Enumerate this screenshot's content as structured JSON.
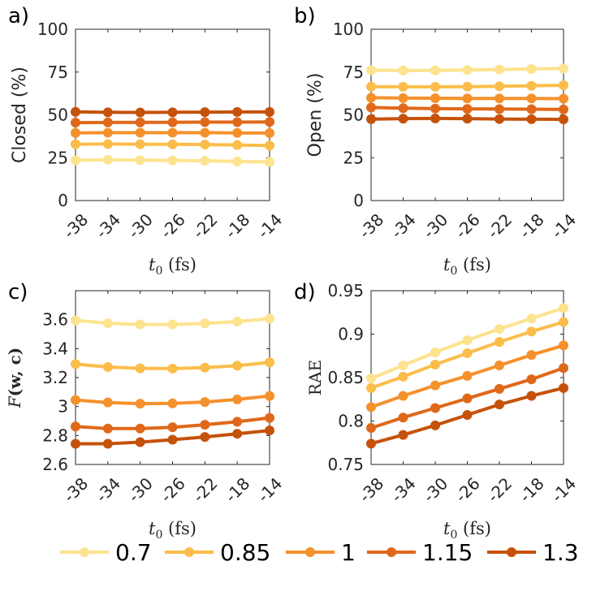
{
  "colors": [
    "#fde38e",
    "#fbbd4a",
    "#f5912c",
    "#e0681a",
    "#c5520a"
  ],
  "legend": [
    "0.7",
    "0.85",
    "1",
    "1.15",
    "1.3"
  ],
  "chart_data": [
    {
      "type": "line",
      "panel_label": "a)",
      "ylabel": "Closed (%)",
      "xlabel_main": "t",
      "xlabel_sub": "0",
      "xlabel_unit": "(fs)",
      "categories": [
        "-38",
        "-34",
        "-30",
        "-26",
        "-22",
        "-18",
        "-14"
      ],
      "ylim": [
        0,
        100
      ],
      "yticks": [
        "0",
        "25",
        "50",
        "75",
        "100"
      ],
      "ytick_values": [
        0,
        25,
        50,
        75,
        100
      ],
      "series": [
        {
          "name": "0.7",
          "values": [
            23.5,
            23.8,
            23.6,
            23.4,
            23.2,
            22.8,
            22.5
          ]
        },
        {
          "name": "0.85",
          "values": [
            32.9,
            33.0,
            32.9,
            32.8,
            32.7,
            32.4,
            32.1
          ]
        },
        {
          "name": "1",
          "values": [
            39.5,
            39.6,
            39.6,
            39.6,
            39.6,
            39.5,
            39.4
          ]
        },
        {
          "name": "1.15",
          "values": [
            45.5,
            45.6,
            45.6,
            45.7,
            45.8,
            45.8,
            45.9
          ]
        },
        {
          "name": "1.3",
          "values": [
            51.8,
            51.5,
            51.4,
            51.5,
            51.6,
            51.7,
            51.7
          ]
        }
      ]
    },
    {
      "type": "line",
      "panel_label": "b)",
      "ylabel": "Open (%)",
      "xlabel_main": "t",
      "xlabel_sub": "0",
      "xlabel_unit": "(fs)",
      "categories": [
        "-38",
        "-34",
        "-30",
        "-26",
        "-22",
        "-18",
        "-14"
      ],
      "ylim": [
        0,
        100
      ],
      "yticks": [
        "0",
        "25",
        "50",
        "75",
        "100"
      ],
      "ytick_values": [
        0,
        25,
        50,
        75,
        100
      ],
      "series": [
        {
          "name": "0.7",
          "values": [
            76.1,
            75.9,
            76.0,
            76.2,
            76.5,
            76.8,
            77.1
          ]
        },
        {
          "name": "0.85",
          "values": [
            66.5,
            66.4,
            66.4,
            66.5,
            66.7,
            67.0,
            67.3
          ]
        },
        {
          "name": "1",
          "values": [
            60.0,
            59.8,
            59.7,
            59.6,
            59.6,
            59.6,
            59.5
          ]
        },
        {
          "name": "1.15",
          "values": [
            54.3,
            53.9,
            53.7,
            53.5,
            53.4,
            53.3,
            53.2
          ]
        },
        {
          "name": "1.3",
          "values": [
            47.5,
            47.8,
            47.9,
            47.8,
            47.6,
            47.5,
            47.4
          ]
        }
      ]
    },
    {
      "type": "line",
      "panel_label": "c)",
      "ylabel": "F(w, c)",
      "xlabel_main": "t",
      "xlabel_sub": "0",
      "xlabel_unit": "(fs)",
      "categories": [
        "-38",
        "-34",
        "-30",
        "-26",
        "-22",
        "-18",
        "-14"
      ],
      "ylim": [
        2.6,
        3.8
      ],
      "yticks": [
        "2.6",
        "2.8",
        "3",
        "3.2",
        "3.4",
        "3.6"
      ],
      "ytick_values": [
        2.6,
        2.8,
        3.0,
        3.2,
        3.4,
        3.6
      ],
      "series": [
        {
          "name": "0.7",
          "values": [
            3.595,
            3.575,
            3.567,
            3.567,
            3.574,
            3.587,
            3.607
          ]
        },
        {
          "name": "0.85",
          "values": [
            3.293,
            3.273,
            3.264,
            3.262,
            3.269,
            3.282,
            3.305
          ]
        },
        {
          "name": "1",
          "values": [
            3.045,
            3.028,
            3.02,
            3.022,
            3.031,
            3.049,
            3.073
          ]
        },
        {
          "name": "1.15",
          "values": [
            2.862,
            2.848,
            2.848,
            2.857,
            2.874,
            2.895,
            2.922
          ]
        },
        {
          "name": "1.3",
          "values": [
            2.743,
            2.743,
            2.754,
            2.771,
            2.79,
            2.812,
            2.835
          ]
        }
      ]
    },
    {
      "type": "line",
      "panel_label": "d)",
      "ylabel": "RAE",
      "xlabel_main": "t",
      "xlabel_sub": "0",
      "xlabel_unit": "(fs)",
      "categories": [
        "-38",
        "-34",
        "-30",
        "-26",
        "-22",
        "-18",
        "-14"
      ],
      "ylim": [
        0.75,
        0.95
      ],
      "yticks": [
        "0.75",
        "0.8",
        "0.85",
        "0.9",
        "0.95"
      ],
      "ytick_values": [
        0.75,
        0.8,
        0.85,
        0.9,
        0.95
      ],
      "series": [
        {
          "name": "0.7",
          "values": [
            0.849,
            0.864,
            0.879,
            0.893,
            0.906,
            0.918,
            0.93
          ]
        },
        {
          "name": "0.85",
          "values": [
            0.838,
            0.851,
            0.865,
            0.878,
            0.891,
            0.903,
            0.914
          ]
        },
        {
          "name": "1",
          "values": [
            0.816,
            0.829,
            0.841,
            0.852,
            0.864,
            0.876,
            0.887
          ]
        },
        {
          "name": "1.15",
          "values": [
            0.792,
            0.804,
            0.815,
            0.826,
            0.837,
            0.848,
            0.861
          ]
        },
        {
          "name": "1.3",
          "values": [
            0.774,
            0.784,
            0.795,
            0.807,
            0.819,
            0.829,
            0.838
          ]
        }
      ]
    }
  ]
}
